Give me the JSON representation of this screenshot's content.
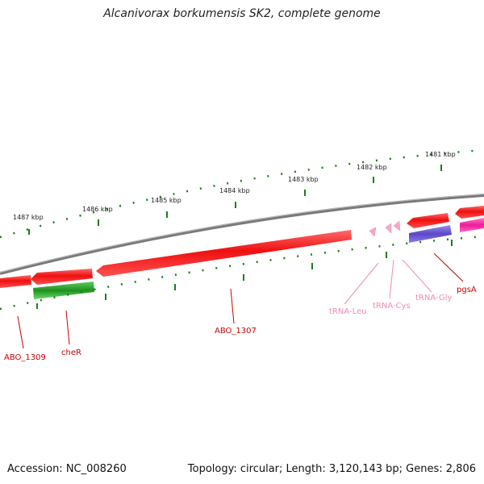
{
  "title": "Alcanivorax borkumensis SK2, complete genome",
  "accession": "Accession: NC_008260",
  "summary": "Topology: circular; Length: 3,120,143 bp; Genes: 2,806",
  "colors": {
    "backbone": "#808080",
    "gene": "#ee1c1c",
    "gene_green": "#2ea02e",
    "gene_purple": "#6a5acd",
    "gene_magenta": "#ee1c9c",
    "trna": "#f7a6c8",
    "tick": "#1a7f1a",
    "label_gene": "#cc0000",
    "label_trna": "#f08ab8"
  },
  "kbp_labels": [
    "1487 kbp",
    "1486 kbp",
    "1485 kbp",
    "1484 kbp",
    "1483 kbp",
    "1482 kbp",
    "1481 kbp"
  ],
  "gene_labels": [
    "ABO_1309",
    "cheR",
    "ABO_1307",
    "tRNA-Leu",
    "tRNA-Cys",
    "tRNA-Gly",
    "pgsA"
  ]
}
